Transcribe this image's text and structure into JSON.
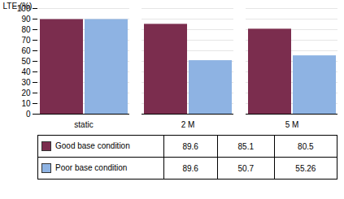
{
  "chart_data": {
    "type": "bar",
    "categories": [
      "static",
      "2 M",
      "5 M"
    ],
    "series": [
      {
        "name": "Good base condition",
        "color": "#7B2D4E",
        "values": [
          89.6,
          85.1,
          80.5
        ]
      },
      {
        "name": "Poor base condition",
        "color": "#8EB3E3",
        "values": [
          89.6,
          50.7,
          55.26
        ]
      }
    ],
    "y_label": "LTE (%)",
    "ylim": [
      0,
      100
    ],
    "yticks": [
      0,
      10,
      20,
      30,
      40,
      50,
      60,
      70,
      80,
      90,
      100
    ],
    "grid": true,
    "legend": "bottom"
  }
}
